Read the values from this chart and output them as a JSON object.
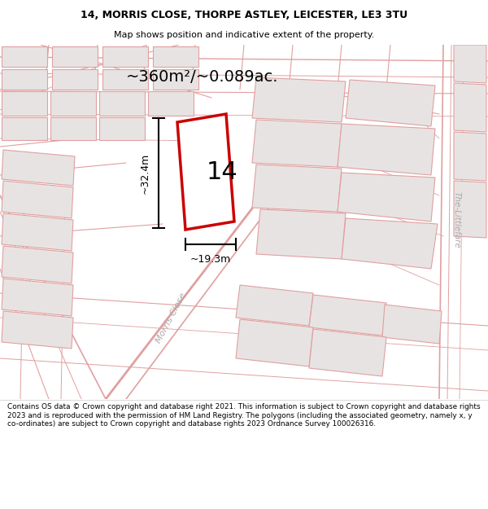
{
  "title_line1": "14, MORRIS CLOSE, THORPE ASTLEY, LEICESTER, LE3 3TU",
  "title_line2": "Map shows position and indicative extent of the property.",
  "area_label": "~360m²/~0.089ac.",
  "property_number": "14",
  "dim_width": "~19.3m",
  "dim_height": "~32.4m",
  "road_label_morris": "Morris Close",
  "road_label_littlefare": "The-Littlefare",
  "footer_text": "Contains OS data © Crown copyright and database right 2021. This information is subject to Crown copyright and database rights 2023 and is reproduced with the permission of HM Land Registry. The polygons (including the associated geometry, namely x, y co-ordinates) are subject to Crown copyright and database rights 2023 Ordnance Survey 100026316.",
  "bg_map": "#f7f2f2",
  "title_bg": "#ffffff",
  "footer_bg": "#ffffff",
  "property_fill": "#ffffff",
  "property_edge": "#cc0000",
  "neighbor_fill": "#e8e3e3",
  "neighbor_edge": "#e0a0a0",
  "road_color": "#e0a0a0",
  "road_lw": 1.0,
  "label_gray": "#aaaaaa"
}
